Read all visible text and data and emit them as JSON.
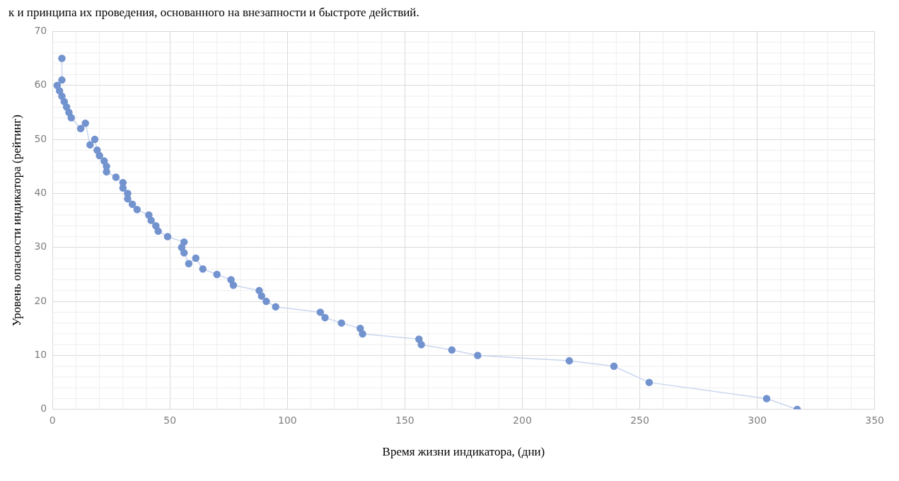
{
  "chart_data": {
    "type": "line",
    "xlabel": "Время жизни индикатора, (дни)",
    "ylabel": "Уровень опасности индикатора (рейтинг)",
    "annotations": [
      "к и принципа их проведения, основанного на внезапности и быстроте действий."
    ],
    "series": [
      {
        "color": "#7393cf",
        "x": [
          4,
          4,
          2,
          3,
          4,
          5,
          6,
          7,
          8,
          12,
          14,
          16,
          18,
          19,
          20,
          22,
          23,
          23,
          27,
          30,
          30,
          32,
          32,
          34,
          36,
          41,
          42,
          44,
          45,
          49,
          56,
          55,
          56,
          58,
          61,
          64,
          70,
          76,
          77,
          88,
          89,
          91,
          95,
          114,
          116,
          123,
          131,
          132,
          156,
          157,
          170,
          181,
          220,
          239,
          254,
          304,
          317
        ],
        "values": [
          65,
          61,
          60,
          59,
          58,
          57,
          56,
          55,
          54,
          52,
          53,
          49,
          50,
          48,
          47,
          46,
          45,
          44,
          43,
          42,
          41,
          40,
          39,
          38,
          37,
          36,
          35,
          34,
          33,
          32,
          31,
          30,
          29,
          27,
          28,
          26,
          25,
          24,
          23,
          22,
          21,
          20,
          19,
          18,
          17,
          16,
          15,
          14,
          13,
          12,
          11,
          10,
          9,
          8,
          5,
          2,
          0
        ]
      }
    ],
    "xlim": [
      0,
      350
    ],
    "xticks": [
      0,
      50,
      100,
      150,
      200,
      250,
      300,
      350
    ],
    "ylim": [
      0,
      70
    ],
    "yticks": [
      0,
      10,
      20,
      30,
      40,
      50,
      60,
      70
    ],
    "grid": true,
    "marker": "circle",
    "line_style": "solid",
    "legend": false
  }
}
